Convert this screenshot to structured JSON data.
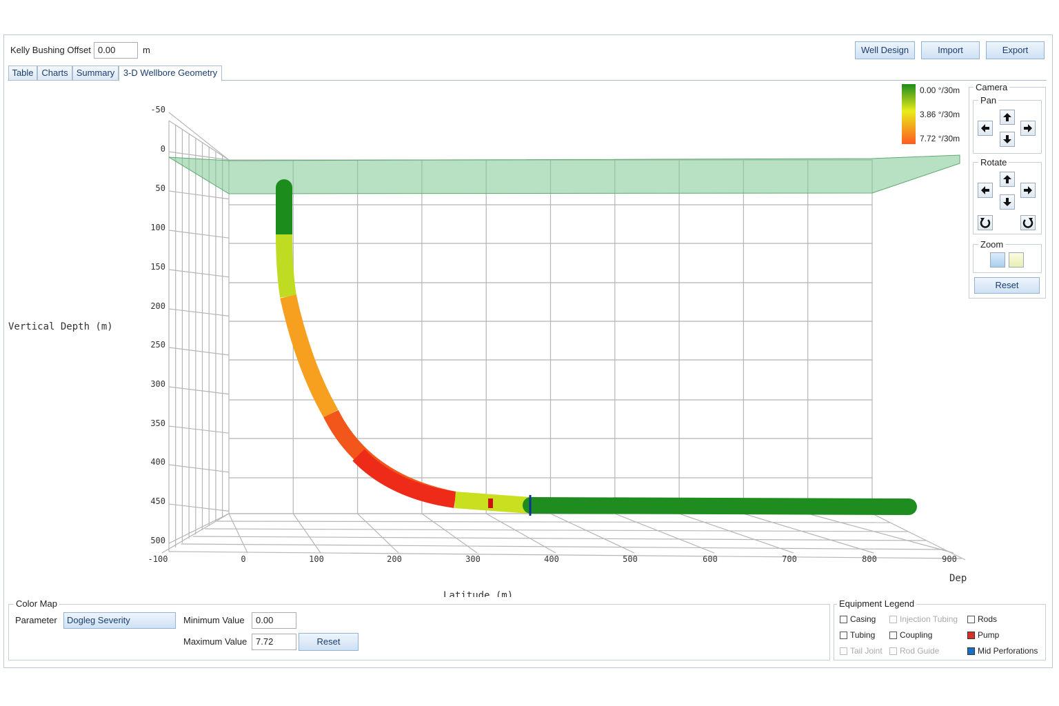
{
  "toolbar": {
    "kelly_label": "Kelly Bushing Offset",
    "kelly_value": "0.00",
    "kelly_unit": "m",
    "buttons": [
      "Well Design",
      "Import",
      "Export"
    ]
  },
  "tabs": {
    "items": [
      "Table",
      "Charts",
      "Summary",
      "3-D Wellbore Geometry"
    ],
    "selected": 3
  },
  "plot": {
    "y_axis_label": "Vertical Depth (m)",
    "y_ticks": [
      "-50",
      "0",
      "50",
      "100",
      "150",
      "200",
      "250",
      "300",
      "350",
      "400",
      "450",
      "500"
    ],
    "x_axis_label": "Latitude (m)",
    "x_ticks": [
      "-100",
      "0",
      "100",
      "200",
      "300",
      "400",
      "500",
      "600",
      "700",
      "800",
      "900"
    ],
    "z_axis_label": "Dep",
    "scale_labels": [
      "0.00 °/30m",
      "3.86 °/30m",
      "7.72 °/30m"
    ]
  },
  "camera": {
    "title": "Camera",
    "pan": "Pan",
    "rotate": "Rotate",
    "zoom": "Zoom",
    "reset": "Reset"
  },
  "color_map": {
    "title": "Color Map",
    "parameter_label": "Parameter",
    "parameter": "Dogleg Severity",
    "min_label": "Minimum Value",
    "min_value": "0.00",
    "max_label": "Maximum Value",
    "max_value": "7.72",
    "reset": "Reset"
  },
  "equipment": {
    "title": "Equipment Legend",
    "items": [
      {
        "label": "Casing",
        "checked": false,
        "enabled": true
      },
      {
        "label": "Injection Tubing",
        "checked": false,
        "enabled": false
      },
      {
        "label": "Rods",
        "checked": false,
        "enabled": true
      },
      {
        "label": "Tubing",
        "checked": false,
        "enabled": true
      },
      {
        "label": "Coupling",
        "checked": false,
        "enabled": true
      },
      {
        "label": "Pump",
        "checked": true,
        "enabled": true
      },
      {
        "label": "Tail Joint",
        "checked": false,
        "enabled": false
      },
      {
        "label": "Rod Guide",
        "checked": false,
        "enabled": false
      },
      {
        "label": "Mid Perforations",
        "checked": true,
        "enabled": true
      }
    ]
  }
}
